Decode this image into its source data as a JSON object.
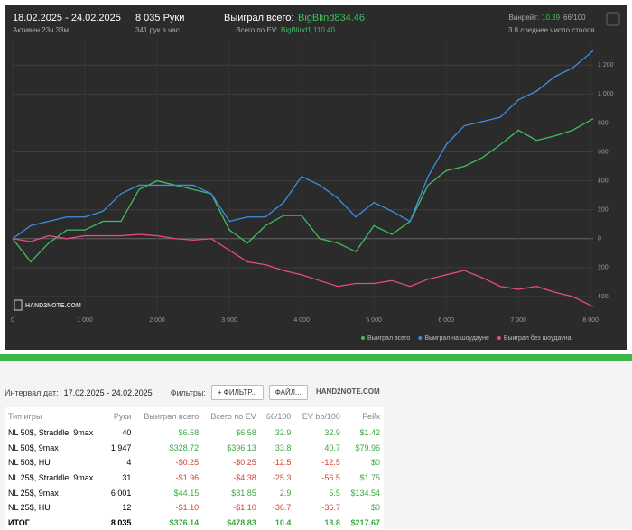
{
  "header": {
    "dates": "18.02.2025 - 24.02.2025",
    "active": "Активен 23ч 33м",
    "hands": "8 035 Руки",
    "rate": "341 рук в час",
    "won_label": "Выиграл всего:",
    "won_value": "BigBlind834.46",
    "ev_label": "Всего по EV:",
    "ev_value": "BigBlind1,110.40",
    "winrate_label": "Винрейт:",
    "winrate_value": "10.39",
    "winrate_unit": "66/100",
    "tables": "3.8 среднее число столов",
    "logo": "HAND2NOTE.COM"
  },
  "chart_data": {
    "type": "line",
    "x": [
      0,
      250,
      500,
      750,
      1000,
      1250,
      1500,
      1750,
      2000,
      2250,
      2500,
      2750,
      3000,
      3250,
      3500,
      3750,
      4000,
      4250,
      4500,
      4750,
      5000,
      5250,
      5500,
      5750,
      6000,
      6250,
      6500,
      6750,
      7000,
      7250,
      7500,
      7750,
      8035
    ],
    "series": [
      {
        "name": "Выиграл всего",
        "color": "#3fbf5f",
        "values": [
          0,
          -160,
          -30,
          60,
          60,
          120,
          120,
          340,
          400,
          370,
          340,
          310,
          60,
          -30,
          90,
          160,
          160,
          0,
          -30,
          -90,
          90,
          30,
          120,
          370,
          470,
          500,
          560,
          650,
          750,
          680,
          710,
          750,
          830
        ]
      },
      {
        "name": "Выиграл на шоудауне",
        "color": "#3a8ee6",
        "values": [
          0,
          90,
          120,
          150,
          150,
          190,
          310,
          370,
          370,
          370,
          370,
          310,
          120,
          150,
          150,
          250,
          430,
          370,
          280,
          150,
          250,
          190,
          120,
          430,
          650,
          780,
          810,
          840,
          960,
          1020,
          1120,
          1180,
          1300
        ]
      },
      {
        "name": "Выиграл без шоудауна",
        "color": "#e84a82",
        "values": [
          0,
          -20,
          20,
          0,
          20,
          20,
          20,
          30,
          20,
          0,
          -10,
          0,
          -80,
          -160,
          -180,
          -220,
          -250,
          -290,
          -330,
          -310,
          -310,
          -290,
          -330,
          -280,
          -250,
          -220,
          -270,
          -330,
          -350,
          -330,
          -370,
          -400,
          -470
        ]
      }
    ],
    "xlim": [
      0,
      8035
    ],
    "ylim": [
      -500,
      1370
    ],
    "xticks": [
      0,
      {
        "value": 1000,
        "label": "1 000"
      },
      {
        "value": 2000,
        "label": "2 000"
      },
      {
        "value": 3000,
        "label": "3 000"
      },
      {
        "value": 4000,
        "label": "4 000"
      },
      {
        "value": 5000,
        "label": "5 000"
      },
      {
        "value": 6000,
        "label": "6 000"
      },
      {
        "value": 7000,
        "label": "7 000"
      },
      {
        "value": 8000,
        "label": "8 000"
      }
    ],
    "yticks": [
      {
        "value": -400,
        "label": "400"
      },
      {
        "value": -200,
        "label": "200"
      },
      0,
      200,
      400,
      600,
      800,
      {
        "value": 1000,
        "label": "1 000"
      },
      {
        "value": 1200,
        "label": "1 200"
      }
    ],
    "grid": true
  },
  "filters": {
    "interval_label": "Интервал дат:",
    "interval": "17.02.2025 - 24.02.2025",
    "filters_label": "Фильтры:",
    "filter_button": "+ ФИЛЬТР...",
    "file_button": "ФАЙЛ...",
    "logo": "HAND2NOTE.COM"
  },
  "table": {
    "columns": [
      "Тип игры",
      "Руки",
      "Выиграл всего",
      "Всего по EV",
      "66/100",
      "EV bb/100",
      "Рейк"
    ],
    "rows": [
      [
        "NL 50$, Straddle, 9max",
        "40",
        "$6.58",
        "$6.58",
        "32.9",
        "32.9",
        "$1.42"
      ],
      [
        "NL 50$, 9max",
        "1 947",
        "$328.72",
        "$396.13",
        "33.8",
        "40.7",
        "$79.96"
      ],
      [
        "NL 50$, HU",
        "4",
        "-$0.25",
        "-$0.25",
        "-12.5",
        "-12.5",
        "$0"
      ],
      [
        "NL 25$, Straddle, 9max",
        "31",
        "-$1.96",
        "-$4.38",
        "-25.3",
        "-56.5",
        "$1.75"
      ],
      [
        "NL 25$, 9max",
        "6 001",
        "$44.15",
        "$81.85",
        "2.9",
        "5.5",
        "$134.54"
      ],
      [
        "NL 25$, HU",
        "12",
        "-$1.10",
        "-$1.10",
        "-36.7",
        "-36.7",
        "$0"
      ]
    ],
    "total": [
      "ИТОГ",
      "8 035",
      "$376.14",
      "$478.83",
      "10.4",
      "13.8",
      "$217.67"
    ]
  }
}
